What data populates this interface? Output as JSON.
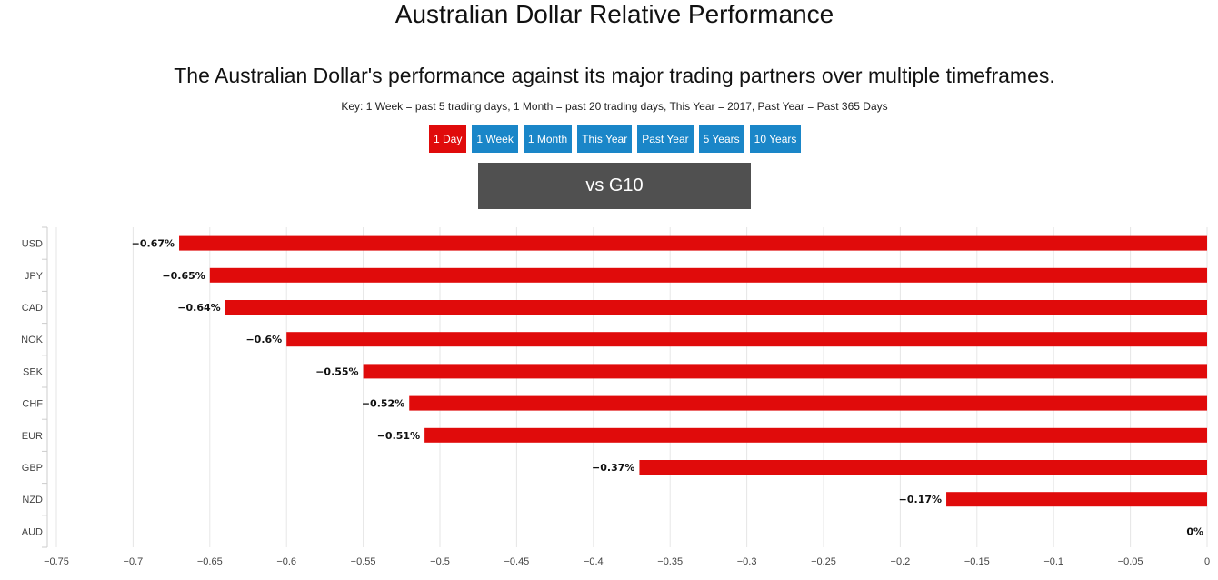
{
  "header": {
    "title": "Australian Dollar Relative Performance",
    "subtitle": "The Australian Dollar's performance against its major trading partners over multiple timeframes.",
    "key": "Key: 1 Week = past 5 trading days, 1 Month = past 20 trading days, This Year = 2017, Past Year = Past 365 Days"
  },
  "tabs": [
    {
      "label": "1 Day",
      "active": true
    },
    {
      "label": "1 Week",
      "active": false
    },
    {
      "label": "1 Month",
      "active": false
    },
    {
      "label": "This Year",
      "active": false
    },
    {
      "label": "Past Year",
      "active": false
    },
    {
      "label": "5 Years",
      "active": false
    },
    {
      "label": "10 Years",
      "active": false
    }
  ],
  "group_label": "vs G10",
  "colors": {
    "bar": "#e00b0b",
    "tab": "#1a86c8",
    "tab_active": "#e00b0b",
    "group_label_bg": "#505050"
  },
  "chart_data": {
    "type": "bar",
    "orientation": "horizontal",
    "categories": [
      "USD",
      "JPY",
      "CAD",
      "NOK",
      "SEK",
      "CHF",
      "EUR",
      "GBP",
      "NZD",
      "AUD"
    ],
    "values": [
      -0.67,
      -0.65,
      -0.64,
      -0.6,
      -0.55,
      -0.52,
      -0.51,
      -0.37,
      -0.17,
      0
    ],
    "data_labels": [
      "−0.67%",
      "−0.65%",
      "−0.64%",
      "−0.6%",
      "−0.55%",
      "−0.52%",
      "−0.51%",
      "−0.37%",
      "−0.17%",
      "0%"
    ],
    "xlim": [
      -0.75,
      0
    ],
    "xticks": [
      -0.75,
      -0.7,
      -0.65,
      -0.6,
      -0.55,
      -0.5,
      -0.45,
      -0.4,
      -0.35,
      -0.3,
      -0.25,
      -0.2,
      -0.15,
      -0.1,
      -0.05,
      0
    ],
    "xtick_labels": [
      "−0.75",
      "−0.7",
      "−0.65",
      "−0.6",
      "−0.55",
      "−0.5",
      "−0.45",
      "−0.4",
      "−0.35",
      "−0.3",
      "−0.25",
      "−0.2",
      "−0.15",
      "−0.1",
      "−0.05",
      "0"
    ],
    "grid": true,
    "legend": false
  }
}
